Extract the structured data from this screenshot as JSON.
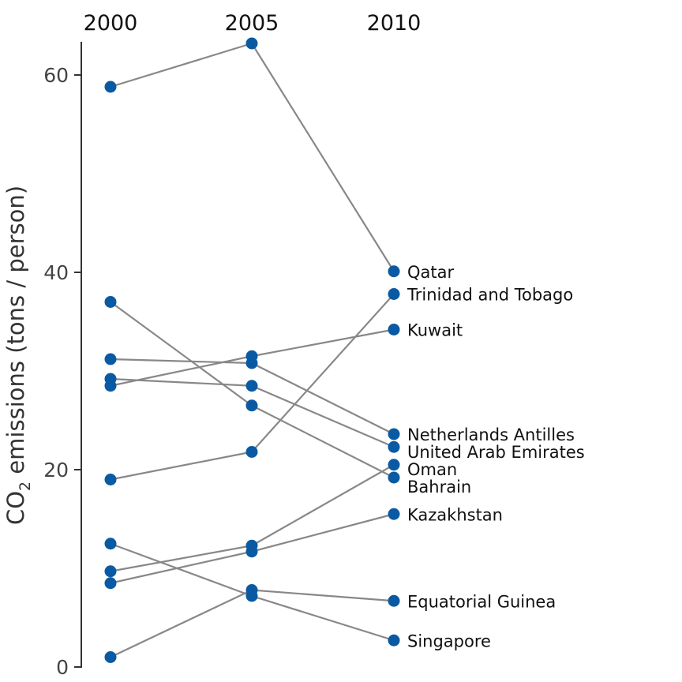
{
  "chart_data": {
    "type": "line",
    "subtype": "slopegraph",
    "x": [
      "2000",
      "2005",
      "2010"
    ],
    "ylabel_main": "CO",
    "ylabel_sub": "2",
    "ylabel_rest": " emissions (tons / person)",
    "y_ticks": [
      0,
      20,
      40,
      60
    ],
    "ylim": [
      0,
      63
    ],
    "grid": false,
    "legend": "none",
    "colors": {
      "point": "#0a5aa3",
      "line": "#888888",
      "axis": "#333333"
    },
    "series": [
      {
        "name": "Qatar",
        "values": [
          58.8,
          63.2,
          40.1
        ]
      },
      {
        "name": "Trinidad and Tobago",
        "values": [
          19.0,
          21.8,
          37.8
        ]
      },
      {
        "name": "Kuwait",
        "values": [
          28.5,
          31.5,
          34.2
        ]
      },
      {
        "name": "Netherlands Antilles",
        "values": [
          31.2,
          30.8,
          23.6
        ]
      },
      {
        "name": "United Arab Emirates",
        "values": [
          29.2,
          28.5,
          22.3
        ]
      },
      {
        "name": "Oman",
        "values": [
          9.7,
          12.3,
          20.5
        ]
      },
      {
        "name": "Bahrain",
        "values": [
          37.0,
          26.5,
          19.2
        ]
      },
      {
        "name": "Kazakhstan",
        "values": [
          8.5,
          11.7,
          15.5
        ]
      },
      {
        "name": "Equatorial Guinea",
        "values": [
          1.0,
          7.8,
          6.7
        ]
      },
      {
        "name": "Singapore",
        "values": [
          12.5,
          7.2,
          2.7
        ]
      }
    ]
  }
}
